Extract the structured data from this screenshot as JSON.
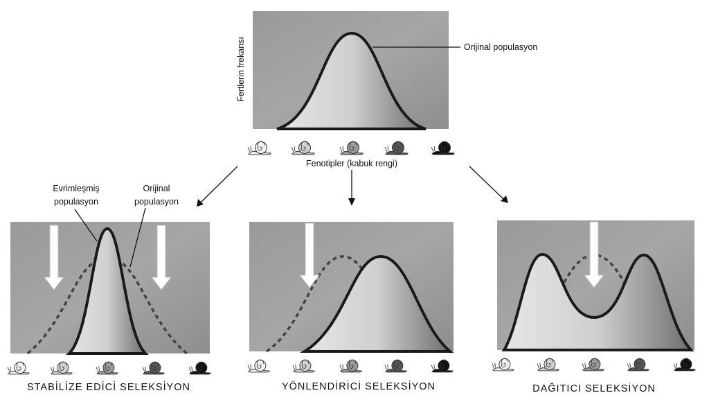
{
  "top": {
    "y_label": "Fertlerin frekansı",
    "curve_label": "Orijinal populasyon",
    "x_label": "Fenotipler (kabuk rengi)"
  },
  "panels": [
    {
      "title": "STABİLİZE EDİCİ SELEKSİYON",
      "evolved_label": [
        "Evrimleşmiş",
        "populasyon"
      ],
      "original_label": [
        "Orijinal",
        "populasyon"
      ]
    },
    {
      "title": "YÖNLENDİRİCİ SELEKSİYON"
    },
    {
      "title": "DAĞITICI SELEKSİYON"
    }
  ]
}
